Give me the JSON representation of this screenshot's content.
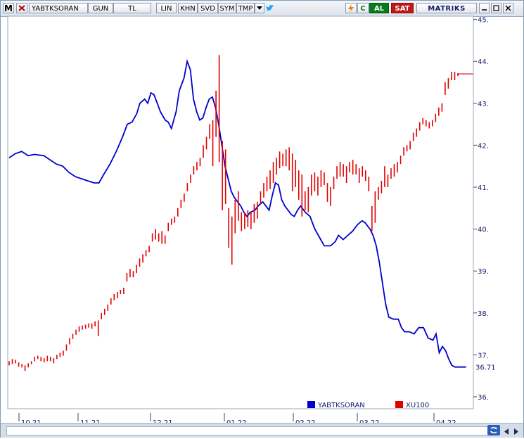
{
  "toolbar": {
    "logo": "M",
    "symbol": "YABTKSORAN",
    "period": "GUN",
    "currency": "TL",
    "scale": "LIN",
    "khn": "KHN",
    "svd": "SVD",
    "sym": "SYM",
    "tmp": "TMP",
    "refresh": "C",
    "buy": "AL",
    "sell": "SAT",
    "brand": "MATRIKS",
    "colors": {
      "buy_bg": "#0a7a1a",
      "sell_bg": "#c01818",
      "brand": "#1a1a6e"
    }
  },
  "icons": [
    "close-icon",
    "dropdown-icon",
    "twitter-icon",
    "lightning-icon",
    "refresh-icon",
    "window-minimize-icon",
    "window-restore-icon",
    "window-close-icon",
    "sync-icon",
    "scroll-left-icon",
    "scroll-right-icon"
  ],
  "chart_data": {
    "type": "line",
    "title": "",
    "xlabel": "",
    "ylabel": "",
    "ylim": [
      36,
      45
    ],
    "yticks": [
      "45.",
      "44.",
      "43.",
      "42.",
      "41.",
      "40.",
      "39.",
      "38.",
      "37.",
      "36."
    ],
    "xticks": [
      "10.21",
      "11.21",
      "12.21",
      "01.22",
      "02.22",
      "03.22",
      "04.22"
    ],
    "last_value_label": "36.71",
    "grid": false,
    "legend_placement": "bottom",
    "series": [
      {
        "name": "YABTKSORAN",
        "color": "#0000cc",
        "style": "line",
        "points": [
          [
            0,
            41.7
          ],
          [
            4,
            41.8
          ],
          [
            8,
            41.85
          ],
          [
            12,
            41.75
          ],
          [
            16,
            41.78
          ],
          [
            22,
            41.75
          ],
          [
            26,
            41.65
          ],
          [
            30,
            41.55
          ],
          [
            34,
            41.5
          ],
          [
            38,
            41.35
          ],
          [
            42,
            41.25
          ],
          [
            46,
            41.2
          ],
          [
            50,
            41.15
          ],
          [
            54,
            41.1
          ],
          [
            57,
            41.1
          ],
          [
            60,
            41.3
          ],
          [
            64,
            41.55
          ],
          [
            68,
            41.85
          ],
          [
            72,
            42.2
          ],
          [
            75,
            42.5
          ],
          [
            78,
            42.55
          ],
          [
            81,
            42.75
          ],
          [
            83,
            43.0
          ],
          [
            86,
            43.1
          ],
          [
            88,
            43.0
          ],
          [
            90,
            43.25
          ],
          [
            92,
            43.2
          ],
          [
            94,
            43.0
          ],
          [
            96,
            42.8
          ],
          [
            99,
            42.6
          ],
          [
            101,
            42.55
          ],
          [
            103,
            42.4
          ],
          [
            106,
            42.8
          ],
          [
            108,
            43.3
          ],
          [
            111,
            43.6
          ],
          [
            113,
            44.0
          ],
          [
            115,
            43.8
          ],
          [
            117,
            43.1
          ],
          [
            119,
            42.8
          ],
          [
            121,
            42.6
          ],
          [
            123,
            42.65
          ],
          [
            125,
            42.9
          ],
          [
            127,
            43.1
          ],
          [
            129,
            43.15
          ],
          [
            131,
            42.9
          ],
          [
            133,
            42.5
          ],
          [
            135,
            42.0
          ],
          [
            137,
            41.5
          ],
          [
            139,
            41.2
          ],
          [
            141,
            40.9
          ],
          [
            143,
            40.75
          ],
          [
            145,
            40.65
          ],
          [
            147,
            40.55
          ],
          [
            149,
            40.4
          ],
          [
            151,
            40.3
          ],
          [
            153,
            40.4
          ],
          [
            156,
            40.45
          ],
          [
            158,
            40.55
          ],
          [
            161,
            40.65
          ],
          [
            163,
            40.55
          ],
          [
            165,
            40.45
          ],
          [
            167,
            40.8
          ],
          [
            169,
            41.1
          ],
          [
            171,
            41.05
          ],
          [
            173,
            40.7
          ],
          [
            175,
            40.55
          ],
          [
            177,
            40.45
          ],
          [
            179,
            40.35
          ],
          [
            181,
            40.3
          ],
          [
            183,
            40.45
          ],
          [
            185,
            40.55
          ],
          [
            188,
            40.4
          ],
          [
            191,
            40.3
          ],
          [
            194,
            40.0
          ],
          [
            197,
            39.8
          ],
          [
            200,
            39.6
          ],
          [
            204,
            39.6
          ],
          [
            207,
            39.7
          ],
          [
            209,
            39.85
          ],
          [
            212,
            39.75
          ],
          [
            215,
            39.85
          ],
          [
            218,
            39.95
          ],
          [
            221,
            40.1
          ],
          [
            224,
            40.2
          ],
          [
            226,
            40.15
          ],
          [
            229,
            40.0
          ],
          [
            231,
            39.85
          ],
          [
            233,
            39.6
          ],
          [
            235,
            39.2
          ],
          [
            237,
            38.7
          ],
          [
            239,
            38.2
          ],
          [
            241,
            37.9
          ],
          [
            244,
            37.85
          ],
          [
            247,
            37.85
          ],
          [
            249,
            37.65
          ],
          [
            251,
            37.55
          ],
          [
            254,
            37.55
          ],
          [
            257,
            37.5
          ],
          [
            260,
            37.65
          ],
          [
            263,
            37.65
          ],
          [
            266,
            37.4
          ],
          [
            269,
            37.35
          ],
          [
            271,
            37.5
          ],
          [
            273,
            37.05
          ],
          [
            275,
            37.2
          ],
          [
            277,
            37.1
          ],
          [
            279,
            36.9
          ],
          [
            281,
            36.75
          ],
          [
            283,
            36.71
          ],
          [
            290,
            36.71
          ]
        ]
      },
      {
        "name": "XU100",
        "color": "#e00000",
        "style": "ohlc",
        "data": [
          [
            0,
            36.85,
            36.75
          ],
          [
            1,
            36.9,
            36.78
          ],
          [
            2,
            36.88,
            36.8
          ],
          [
            3,
            36.82,
            36.72
          ],
          [
            4,
            36.78,
            36.7
          ],
          [
            5,
            36.75,
            36.62
          ],
          [
            6,
            36.8,
            36.7
          ],
          [
            7,
            36.85,
            36.78
          ],
          [
            8,
            36.95,
            36.85
          ],
          [
            9,
            36.98,
            36.9
          ],
          [
            10,
            36.95,
            36.85
          ],
          [
            11,
            36.92,
            36.82
          ],
          [
            12,
            36.98,
            36.85
          ],
          [
            13,
            36.95,
            36.85
          ],
          [
            14,
            36.92,
            36.8
          ],
          [
            15,
            37.0,
            36.9
          ],
          [
            16,
            37.05,
            36.95
          ],
          [
            17,
            37.1,
            36.98
          ],
          [
            18,
            37.25,
            37.1
          ],
          [
            19,
            37.4,
            37.25
          ],
          [
            20,
            37.5,
            37.38
          ],
          [
            21,
            37.6,
            37.48
          ],
          [
            22,
            37.68,
            37.55
          ],
          [
            23,
            37.7,
            37.6
          ],
          [
            24,
            37.72,
            37.62
          ],
          [
            25,
            37.75,
            37.65
          ],
          [
            26,
            37.75,
            37.62
          ],
          [
            27,
            37.8,
            37.68
          ],
          [
            28,
            37.82,
            37.45
          ],
          [
            29,
            38.0,
            37.85
          ],
          [
            30,
            38.1,
            37.95
          ],
          [
            31,
            38.2,
            38.05
          ],
          [
            32,
            38.35,
            38.2
          ],
          [
            33,
            38.45,
            38.3
          ],
          [
            34,
            38.5,
            38.35
          ],
          [
            35,
            38.55,
            38.45
          ],
          [
            36,
            38.6,
            38.45
          ],
          [
            37,
            38.95,
            38.75
          ],
          [
            38,
            39.05,
            38.85
          ],
          [
            39,
            39.0,
            38.85
          ],
          [
            40,
            39.15,
            38.95
          ],
          [
            41,
            39.3,
            39.1
          ],
          [
            42,
            39.4,
            39.2
          ],
          [
            43,
            39.5,
            39.35
          ],
          [
            44,
            39.6,
            39.45
          ],
          [
            45,
            39.9,
            39.7
          ],
          [
            46,
            40.0,
            39.75
          ],
          [
            47,
            39.9,
            39.7
          ],
          [
            48,
            39.95,
            39.65
          ],
          [
            49,
            39.85,
            39.65
          ],
          [
            50,
            40.15,
            39.95
          ],
          [
            51,
            40.25,
            40.1
          ],
          [
            52,
            40.3,
            40.15
          ],
          [
            53,
            40.5,
            40.3
          ],
          [
            54,
            40.7,
            40.5
          ],
          [
            55,
            40.85,
            40.65
          ],
          [
            56,
            41.1,
            40.9
          ],
          [
            57,
            41.3,
            41.1
          ],
          [
            58,
            41.5,
            41.3
          ],
          [
            59,
            41.6,
            41.4
          ],
          [
            60,
            41.7,
            41.5
          ],
          [
            61,
            42.0,
            41.7
          ],
          [
            62,
            42.2,
            41.9
          ],
          [
            63,
            42.5,
            42.15
          ],
          [
            64,
            42.6,
            41.5
          ],
          [
            65,
            43.3,
            42.2
          ],
          [
            66,
            44.15,
            41.6
          ],
          [
            67,
            42.1,
            40.45
          ],
          [
            68,
            41.9,
            40.6
          ],
          [
            69,
            40.5,
            39.55
          ],
          [
            70,
            40.3,
            39.15
          ],
          [
            71,
            40.7,
            39.9
          ],
          [
            72,
            40.9,
            40.2
          ],
          [
            73,
            40.4,
            39.95
          ],
          [
            74,
            40.4,
            40.0
          ],
          [
            75,
            40.45,
            40.05
          ],
          [
            76,
            40.4,
            40.0
          ],
          [
            77,
            40.6,
            40.15
          ],
          [
            78,
            40.65,
            40.25
          ],
          [
            79,
            40.9,
            40.6
          ],
          [
            80,
            41.1,
            40.75
          ],
          [
            81,
            41.25,
            40.9
          ],
          [
            82,
            41.4,
            40.95
          ],
          [
            83,
            41.6,
            41.1
          ],
          [
            84,
            41.7,
            41.3
          ],
          [
            85,
            41.85,
            41.45
          ],
          [
            86,
            41.8,
            41.5
          ],
          [
            87,
            41.9,
            41.5
          ],
          [
            88,
            41.95,
            41.4
          ],
          [
            89,
            41.8,
            40.9
          ],
          [
            90,
            41.65,
            41.0
          ],
          [
            91,
            41.4,
            40.7
          ],
          [
            92,
            41.3,
            40.3
          ],
          [
            93,
            40.9,
            40.45
          ],
          [
            94,
            41.0,
            40.4
          ],
          [
            95,
            41.3,
            40.8
          ],
          [
            96,
            41.35,
            40.9
          ],
          [
            97,
            41.25,
            40.8
          ],
          [
            98,
            41.4,
            41.0
          ],
          [
            99,
            41.35,
            41.05
          ],
          [
            100,
            41.1,
            40.65
          ],
          [
            101,
            41.0,
            40.55
          ],
          [
            102,
            41.25,
            40.95
          ],
          [
            103,
            41.5,
            41.2
          ],
          [
            104,
            41.6,
            41.25
          ],
          [
            105,
            41.55,
            41.25
          ],
          [
            106,
            41.5,
            41.1
          ],
          [
            107,
            41.6,
            41.35
          ],
          [
            108,
            41.65,
            41.3
          ],
          [
            109,
            41.55,
            41.3
          ],
          [
            110,
            41.45,
            41.1
          ],
          [
            111,
            41.5,
            41.25
          ],
          [
            112,
            41.4,
            41.15
          ],
          [
            113,
            41.25,
            40.9
          ],
          [
            114,
            40.55,
            39.95
          ],
          [
            115,
            40.9,
            40.15
          ],
          [
            116,
            41.0,
            40.7
          ],
          [
            117,
            41.15,
            40.85
          ],
          [
            118,
            41.5,
            41.0
          ],
          [
            119,
            41.3,
            41.0
          ],
          [
            120,
            41.45,
            41.2
          ],
          [
            121,
            41.55,
            41.25
          ],
          [
            122,
            41.6,
            41.35
          ],
          [
            123,
            41.75,
            41.55
          ],
          [
            124,
            41.95,
            41.75
          ],
          [
            125,
            42.0,
            41.85
          ],
          [
            126,
            42.1,
            41.9
          ],
          [
            127,
            42.3,
            42.1
          ],
          [
            128,
            42.4,
            42.2
          ],
          [
            129,
            42.55,
            42.35
          ],
          [
            130,
            42.65,
            42.5
          ],
          [
            131,
            42.6,
            42.45
          ],
          [
            132,
            42.55,
            42.4
          ],
          [
            133,
            42.6,
            42.45
          ],
          [
            134,
            42.75,
            42.55
          ],
          [
            135,
            42.9,
            42.7
          ],
          [
            136,
            43.0,
            42.8
          ],
          [
            137,
            43.5,
            43.2
          ],
          [
            138,
            43.6,
            43.35
          ],
          [
            139,
            43.75,
            43.55
          ],
          [
            140,
            43.75,
            43.55
          ],
          [
            141,
            43.72,
            43.65
          ]
        ]
      }
    ]
  }
}
